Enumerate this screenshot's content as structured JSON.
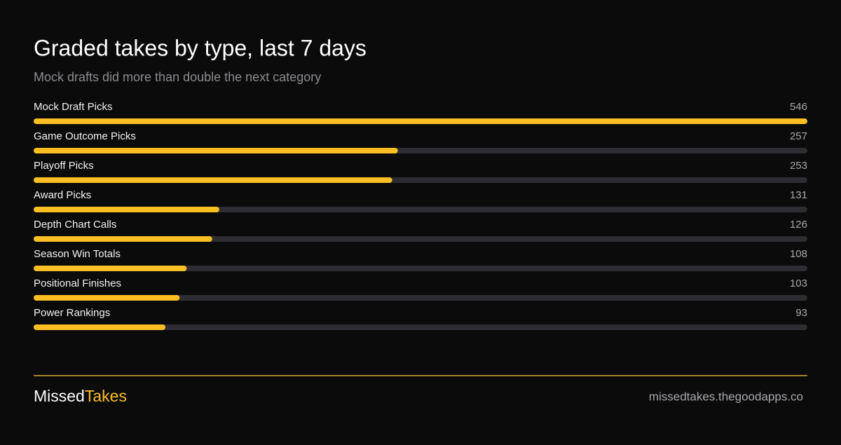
{
  "chart_data": {
    "type": "bar",
    "orientation": "horizontal",
    "title": "Graded takes by type, last 7 days",
    "subtitle": "Mock drafts did more than double the next category",
    "categories": [
      "Mock Draft Picks",
      "Game Outcome Picks",
      "Playoff Picks",
      "Award Picks",
      "Depth Chart Calls",
      "Season Win Totals",
      "Positional Finishes",
      "Power Rankings"
    ],
    "values": [
      546,
      257,
      253,
      131,
      126,
      108,
      103,
      93
    ],
    "xlim": [
      0,
      546
    ],
    "color": "#fbbf24",
    "track_color": "#2e2d33"
  },
  "footer": {
    "brand": [
      "Missed",
      "Takes"
    ],
    "url": "missedtakes.thegoodapps.co"
  }
}
